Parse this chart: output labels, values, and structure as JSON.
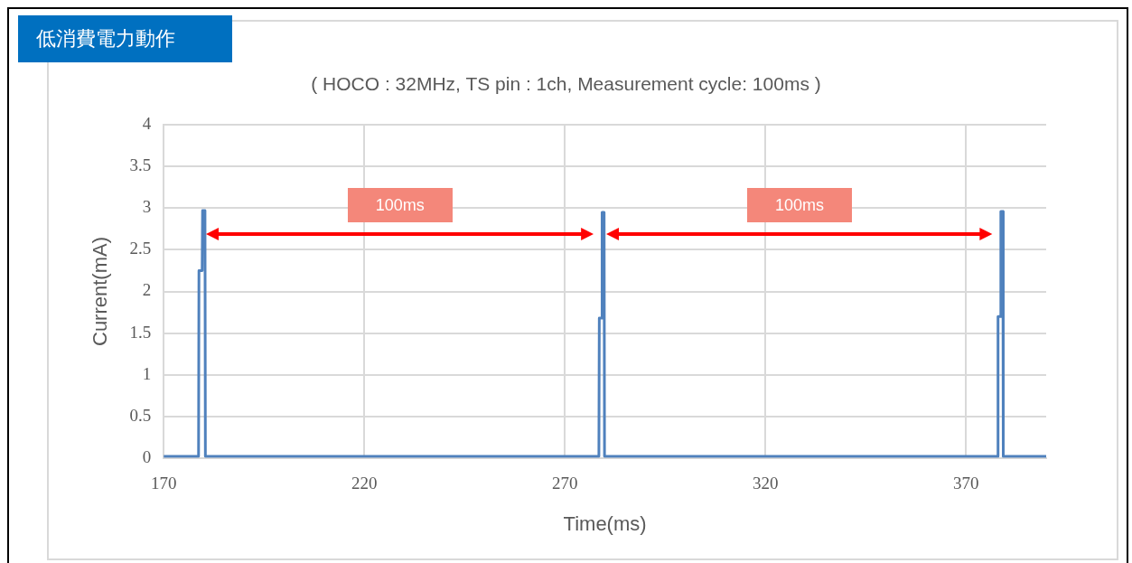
{
  "chart_data": {
    "type": "line",
    "title": "低消費電力動作",
    "subtitle": "( HOCO : 32MHz, TS pin : 1ch, Measurement cycle: 100ms )",
    "xlabel": "Time(ms)",
    "ylabel": "Current(mA)",
    "series": [
      {
        "color": "#4f81bd",
        "x": [
          170,
          178.7,
          178.8,
          179.6,
          179.7,
          180.3,
          180.4,
          278.5,
          278.6,
          279.2,
          279.3,
          279.8,
          279.9,
          377.9,
          378.0,
          378.6,
          378.7,
          379.2,
          379.3,
          390
        ],
        "values": [
          0.02,
          0.02,
          2.25,
          2.25,
          2.97,
          2.97,
          0.02,
          0.02,
          1.68,
          1.68,
          2.95,
          2.95,
          0.02,
          0.02,
          1.7,
          1.7,
          2.96,
          2.96,
          0.02,
          0.02
        ]
      }
    ],
    "xlim": [
      170,
      390
    ],
    "xticks": [
      170,
      220,
      270,
      320,
      370
    ],
    "ylim": [
      0,
      4
    ],
    "yticks": [
      0,
      0.5,
      1,
      1.5,
      2,
      2.5,
      3,
      3.5,
      4
    ],
    "grid": true,
    "legend": false,
    "marker": "none",
    "line_style": "solid",
    "annotations": [
      "100ms",
      "100ms"
    ]
  }
}
